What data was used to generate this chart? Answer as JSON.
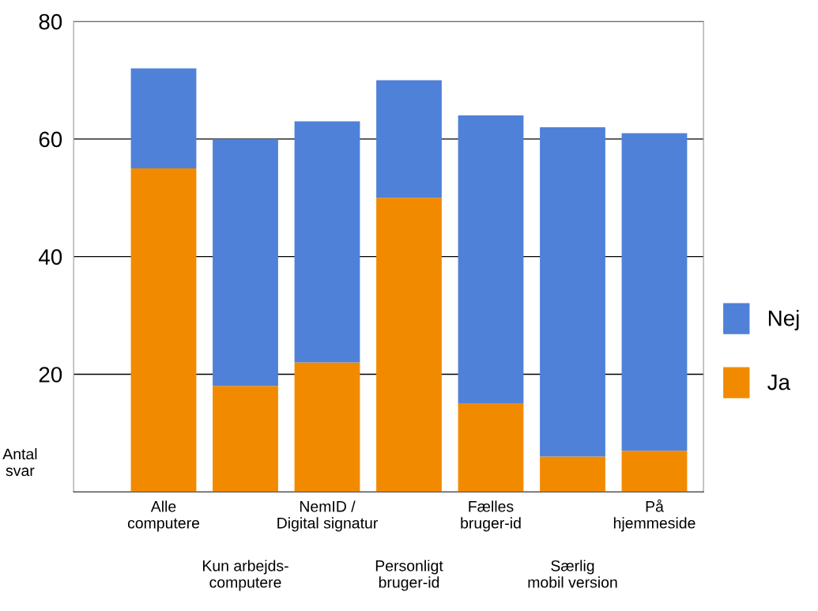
{
  "chart_data": {
    "type": "bar",
    "stacked": true,
    "ylabel": "Antal\nsvar",
    "categories": [
      "Alle\ncomputere",
      "Kun arbejds-\ncomputere",
      "NemID /\nDigital signatur",
      "Personligt\nbruger-id",
      "Fælles\nbruger-id",
      "Særlig\nmobil version",
      "På\nhjemmeside"
    ],
    "series": [
      {
        "name": "Ja",
        "color": "#f28a00",
        "values": [
          55,
          18,
          22,
          50,
          15,
          6,
          7
        ]
      },
      {
        "name": "Nej",
        "color": "#4f81d8",
        "values": [
          17,
          42,
          41,
          20,
          49,
          56,
          54
        ]
      }
    ],
    "ylim": [
      0,
      80
    ],
    "yticks": [
      20,
      40,
      60,
      80
    ],
    "grid": "y",
    "legend": "right"
  }
}
